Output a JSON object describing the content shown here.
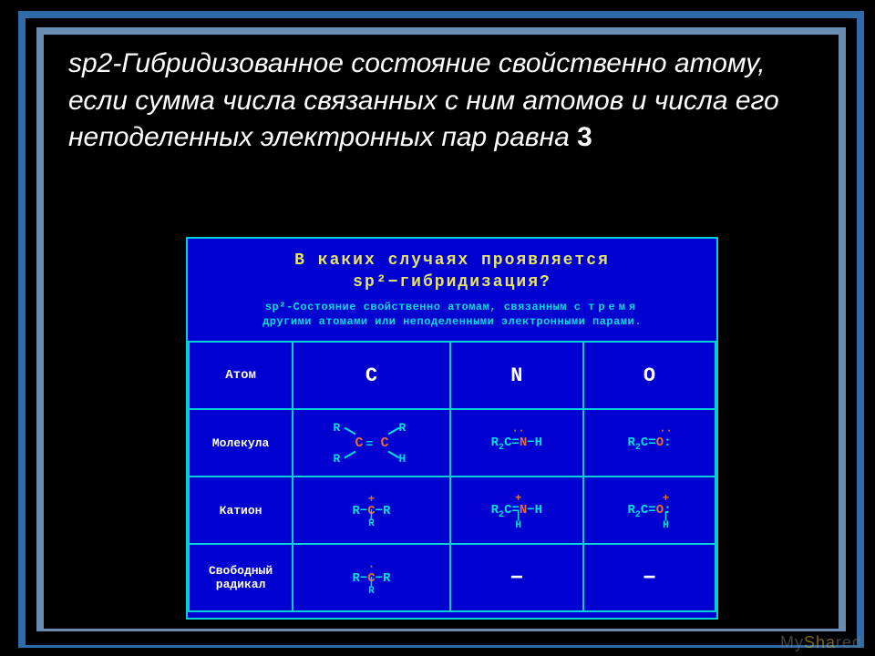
{
  "frame": {
    "outer_color": "#2e6aa7",
    "inner_color": "#6a8bb2"
  },
  "heading": {
    "text_color": "#ffffff",
    "fontsize": 30,
    "prefix": "sp2",
    "body": "-Гибридизованное состояние свойственно атому, если сумма числа связанных с ним атомов и числа его неподеленных электронных пар равна",
    "bold_number": "3"
  },
  "table": {
    "bg_color": "#0000d0",
    "border_color": "#00d0d8",
    "question_line1": "В каких случаях проявляется",
    "question_line2": "sp²−гибридизация?",
    "question_color": "#e6e36a",
    "subtitle": {
      "part1": "sp²-Состояние свойственно атомам, связанным с ",
      "spaced_word": "тремя",
      "part2": " другими атомами или неподеленными электронными парами.",
      "color": "#00e0e8"
    },
    "headers": {
      "col0": "Атом",
      "col1": "C",
      "col2": "N",
      "col3": "O"
    },
    "rows": {
      "molecule": "Молекула",
      "cation": "Катион",
      "radical": "Свободный радикал"
    },
    "colors": {
      "cyan": "#00e0e8",
      "red": "#ea6a3a",
      "white": "#ffffff"
    }
  },
  "watermark": {
    "m": "My",
    "y": "Sha",
    "s": "red"
  }
}
